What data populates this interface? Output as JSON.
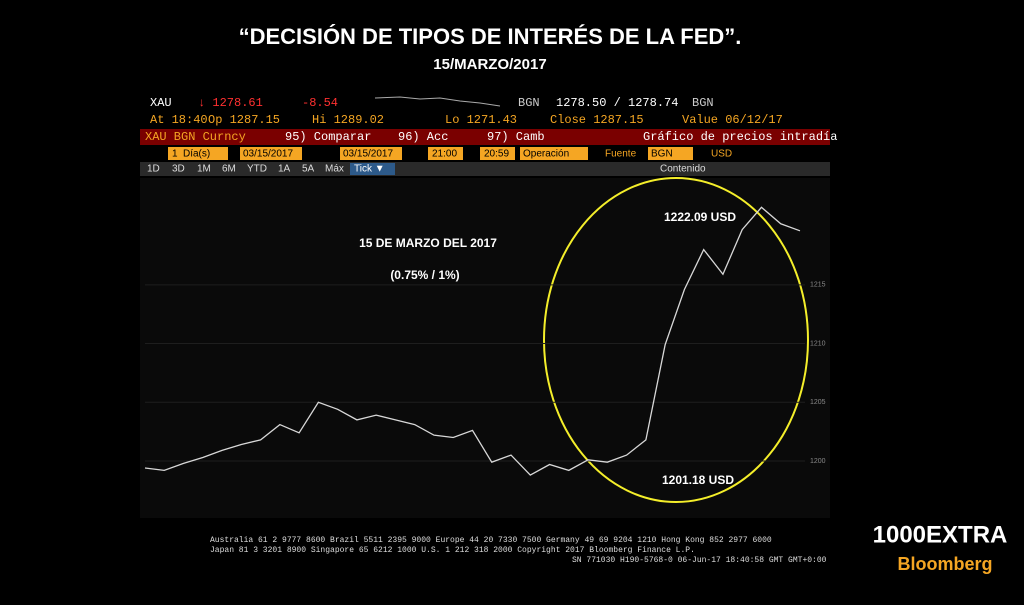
{
  "header": {
    "title": "“DECISIÓN DE TIPOS DE INTERÉS DE LA FED”.",
    "subtitle": "15/MARZO/2017"
  },
  "terminal": {
    "row1": [
      "XAU",
      "↓ 1278.61",
      "-8.54",
      "BGN",
      "1278.50 / 1278.74",
      "BGN"
    ],
    "row2": [
      "At 18:40",
      "Op 1287.15",
      "Hi 1289.02",
      "Lo 1271.43",
      "Close 1287.15",
      "Value 06/12/17"
    ],
    "row3": [
      "XAU BGN Curncy",
      "95) Comparar",
      "96) Acc",
      "97) Camb",
      "Gráfico de precios intradía"
    ],
    "row4": [
      "1",
      "Día(s)",
      "03/15/2017",
      "03/15/2017",
      "21:00",
      "20:59",
      "Operación",
      "Fuente",
      "BGN",
      "USD"
    ],
    "row5": [
      "1D",
      "3D",
      "1M",
      "6M",
      "YTD",
      "1A",
      "5A",
      "Máx",
      "Tick ▼",
      "Contenido"
    ],
    "footer": [
      "Australia 61 2 9777 8600 Brazil 5511 2395 9000 Europe 44 20 7330 7500 Germany 49 69 9204 1210 Hong Kong 852 2977 6000",
      "Japan 81 3 3201 8900        Singapore 65 6212 1000        U.S. 1 212 318 2000        Copyright 2017 Bloomberg Finance L.P.",
      "SN 771030 H190-5768-0 06-Jun-17 18:40:58 GMT  GMT+0:00"
    ]
  },
  "logo": {
    "line1": "1000EXTRA",
    "line2": "Bloomberg"
  },
  "chart_data": {
    "type": "line",
    "annotations": [
      "1222.09 USD",
      "1201.18 USD",
      "15 DE MARZO DEL 2017",
      "(0.75% / 1%)"
    ],
    "categories": [
      null,
      null,
      null,
      null,
      null,
      null,
      null,
      null,
      null,
      null,
      null,
      null,
      null,
      null,
      null,
      null,
      null,
      null,
      null,
      null,
      null,
      null,
      null,
      null,
      null,
      null,
      null,
      null,
      null,
      null,
      null,
      null,
      null,
      null,
      null
    ],
    "series": [
      {
        "color": "#d8d8d8",
        "values": [
          1199.4,
          1199.2,
          1199.8,
          1200.3,
          1200.9,
          1201.4,
          1201.8,
          1203.1,
          1202.4,
          1205.0,
          1204.4,
          1203.5,
          1203.9,
          1203.5,
          1203.1,
          1202.2,
          1202.0,
          1202.6,
          1199.9,
          1200.5,
          1198.8,
          1199.7,
          1199.2,
          1200.1,
          1199.9,
          1200.5,
          1201.8,
          1209.9,
          1214.6,
          1218.0,
          1215.9,
          1219.7,
          1221.6,
          1220.2,
          1219.6
        ]
      }
    ],
    "ylim": [
      1195.4,
      1223.5
    ],
    "yticks": [
      1200,
      1205,
      1210,
      1215
    ]
  }
}
